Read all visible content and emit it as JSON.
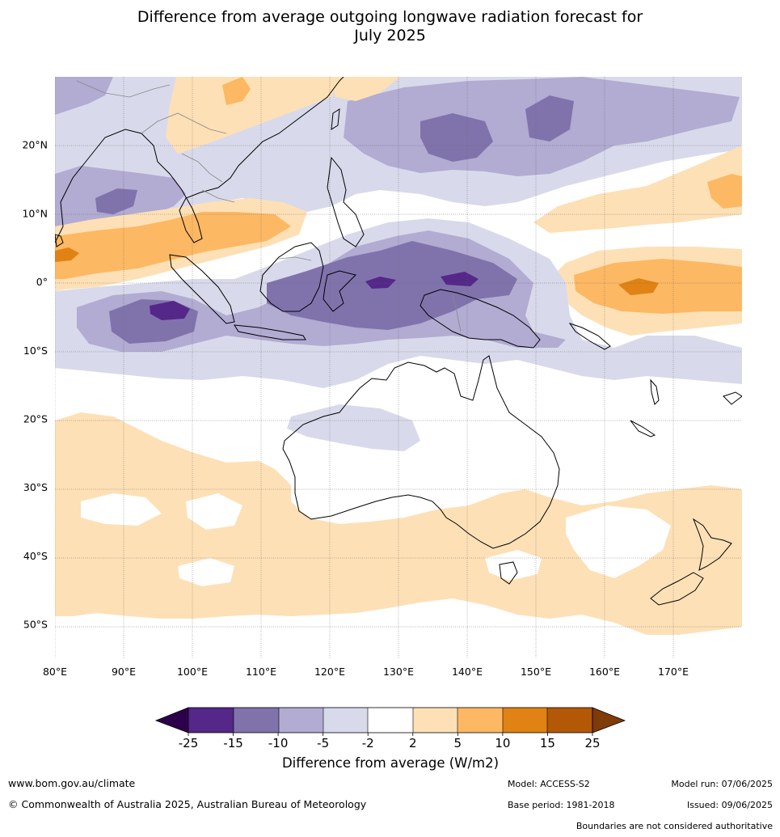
{
  "title": {
    "line1": "Difference from average outgoing longwave radiation forecast for",
    "line2": "July 2025"
  },
  "map": {
    "lon_range": [
      80,
      180
    ],
    "lat_range": [
      -55,
      30
    ],
    "lon_ticks": [
      {
        "value": 80,
        "label": "80°E"
      },
      {
        "value": 90,
        "label": "90°E"
      },
      {
        "value": 100,
        "label": "100°E"
      },
      {
        "value": 110,
        "label": "110°E"
      },
      {
        "value": 120,
        "label": "120°E"
      },
      {
        "value": 130,
        "label": "130°E"
      },
      {
        "value": 140,
        "label": "140°E"
      },
      {
        "value": 150,
        "label": "150°E"
      },
      {
        "value": 160,
        "label": "160°E"
      },
      {
        "value": 170,
        "label": "170°E"
      }
    ],
    "lat_ticks": [
      {
        "value": 20,
        "label": "20°N"
      },
      {
        "value": 10,
        "label": "10°N"
      },
      {
        "value": 0,
        "label": "0°"
      },
      {
        "value": -10,
        "label": "10°S"
      },
      {
        "value": -20,
        "label": "20°S"
      },
      {
        "value": -30,
        "label": "30°S"
      },
      {
        "value": -40,
        "label": "40°S"
      },
      {
        "value": -50,
        "label": "50°S"
      }
    ],
    "colors": {
      "lt_m25": "#2d004b",
      "m25_m15": "#542788",
      "m15_m10": "#8073ac",
      "m10_m5": "#b2abd2",
      "m5_m2": "#d8daeb",
      "m2_2": "#ffffff",
      "p2_p5": "#fee0b6",
      "p5_p10": "#fdb863",
      "p10_p15": "#e08214",
      "p15_p25": "#b35806",
      "gt_p25": "#7f3b08"
    }
  },
  "colorbar": {
    "tick_labels": [
      "-25",
      "-15",
      "-10",
      "-5",
      "-2",
      "2",
      "5",
      "10",
      "15",
      "25"
    ],
    "label": "Difference from average (W/m2)"
  },
  "footer": {
    "website": "www.bom.gov.au/climate",
    "copyright": "© Commonwealth of Australia 2025, Australian Bureau of Meteorology",
    "model": "Model: ACCESS-S2",
    "base_period": "Base period: 1981-2018",
    "model_run": "Model run: 07/06/2025",
    "issued": "Issued: 09/06/2025",
    "disclaimer": "Boundaries are not considered authoritative"
  }
}
